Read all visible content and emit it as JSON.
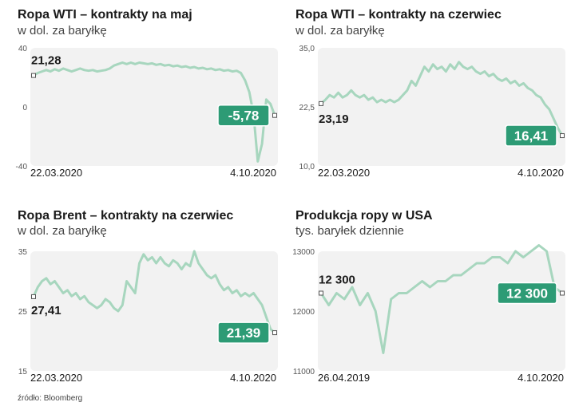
{
  "source": "źródło: Bloomberg",
  "colors": {
    "line": "#a7d6be",
    "plot_bg": "#f2f2f2",
    "label_bg": "#2d9b75",
    "label_fg": "#ffffff"
  },
  "chart_data": [
    {
      "type": "line",
      "title": "Ropa WTI – kontrakty na maj",
      "subtitle": "w dol. za baryłkę",
      "ylim": [
        -40,
        40
      ],
      "y_ticks": [
        "40",
        "0",
        "-40"
      ],
      "x_labels": [
        "22.03.2020",
        "4.10.2020"
      ],
      "start_label": "21,28",
      "end_label": "-5,78",
      "grid": false,
      "series": [
        {
          "values": [
            21.28,
            23,
            24,
            25,
            24,
            25.5,
            24.5,
            26,
            25,
            24,
            25,
            26,
            25,
            24.5,
            25,
            24,
            24.5,
            25,
            26,
            28,
            29,
            30,
            29,
            30,
            29,
            30,
            29.5,
            29,
            29.5,
            28.5,
            29,
            28,
            28.5,
            27.5,
            28,
            27,
            27.5,
            26.5,
            27,
            26,
            26.5,
            25.5,
            26,
            25,
            25.5,
            24.5,
            25,
            24,
            24.5,
            23,
            18,
            10,
            -5,
            -37,
            -25,
            5,
            2,
            -5.78
          ]
        }
      ]
    },
    {
      "type": "line",
      "title": "Ropa WTI – kontrakty na czerwiec",
      "subtitle": "w dol. za baryłkę",
      "ylim": [
        10,
        35
      ],
      "y_ticks": [
        "35,0",
        "22,5",
        "10,0"
      ],
      "x_labels": [
        "22.03.2020",
        "4.10.2020"
      ],
      "start_label": "23,19",
      "end_label": "16,41",
      "grid": false,
      "series": [
        {
          "values": [
            23.19,
            24,
            25,
            24.5,
            25.5,
            24.5,
            25,
            26,
            25,
            24.5,
            25,
            24,
            24.5,
            23.5,
            24,
            23.5,
            24,
            23.5,
            24,
            25,
            26,
            28,
            27,
            29,
            31,
            30,
            31.5,
            30.5,
            31,
            30,
            31.5,
            30.5,
            32,
            31,
            30.5,
            31,
            30,
            29.5,
            30,
            29,
            29.5,
            28.5,
            28,
            28.5,
            27.5,
            28,
            27,
            27.5,
            26.5,
            26,
            25,
            24.5,
            23,
            22,
            20,
            18,
            16.41
          ]
        }
      ]
    },
    {
      "type": "line",
      "title": "Ropa Brent – kontrakty na czerwiec",
      "subtitle": "w dol. za baryłkę",
      "ylim": [
        15,
        35
      ],
      "y_ticks": [
        "35",
        "25",
        "15"
      ],
      "x_labels": [
        "22.03.2020",
        "4.10.2020"
      ],
      "start_label": "27,41",
      "end_label": "21,39",
      "grid": false,
      "series": [
        {
          "values": [
            27.41,
            29,
            30,
            30.5,
            29.5,
            30,
            29,
            28,
            28.5,
            27.5,
            28,
            27,
            27.5,
            26.5,
            26,
            25.5,
            26,
            27,
            26.5,
            25.5,
            25,
            26,
            30,
            29,
            28,
            33,
            34.5,
            33.5,
            34,
            33,
            34,
            33,
            32.5,
            33.5,
            33,
            32,
            33,
            32.5,
            35,
            33,
            32,
            31,
            30.5,
            31,
            29.5,
            28.5,
            29,
            28,
            28.5,
            27.5,
            28,
            27.5,
            28,
            27,
            26,
            24,
            22,
            21.39
          ]
        }
      ]
    },
    {
      "type": "line",
      "title": "Produkcja ropy w USA",
      "subtitle": "tys. baryłek dziennie",
      "ylim": [
        11000,
        13000
      ],
      "y_ticks": [
        "13000",
        "12000",
        "11000"
      ],
      "x_labels": [
        "26.04.2019",
        "4.10.2020"
      ],
      "start_label": "12 300",
      "end_label": "12 300",
      "grid": false,
      "series": [
        {
          "values": [
            12300,
            12100,
            12300,
            12200,
            12400,
            12100,
            12300,
            12000,
            11300,
            12200,
            12300,
            12300,
            12400,
            12500,
            12400,
            12500,
            12500,
            12600,
            12600,
            12700,
            12800,
            12800,
            12900,
            12900,
            12800,
            13000,
            12900,
            13000,
            13100,
            13000,
            12400,
            12300
          ]
        }
      ]
    }
  ]
}
